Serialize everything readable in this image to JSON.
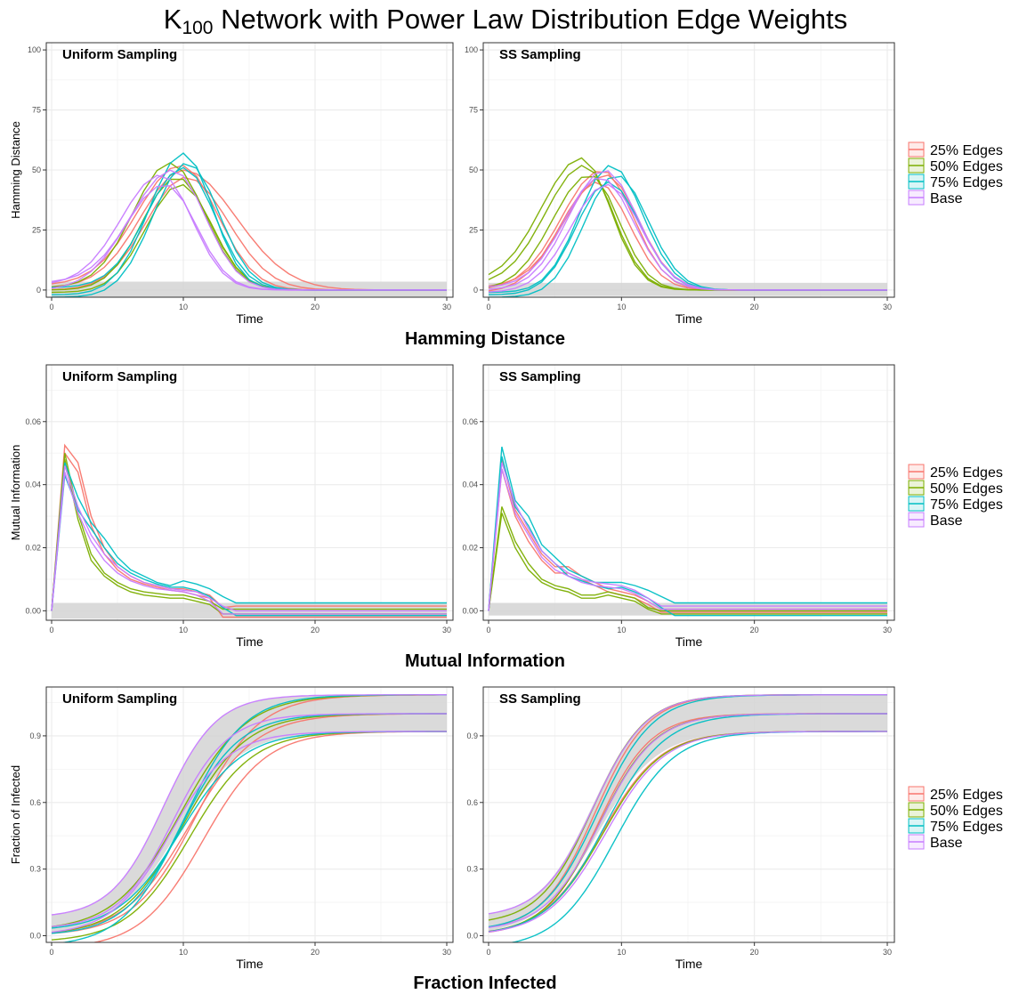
{
  "title": {
    "main": "K",
    "subscript": "100",
    "rest": " Network with Power Law Distribution Edge Weights"
  },
  "colors": {
    "25% Edges": "#F8766D",
    "50% Edges": "#7CAE00",
    "75% Edges": "#00BFC4",
    "Base": "#C77CFF",
    "band": "#D3D3D3"
  },
  "panel_titles": [
    "Uniform Sampling",
    "SS Sampling"
  ],
  "legend": [
    "25% Edges",
    "50% Edges",
    "75% Edges",
    "Base"
  ],
  "chart_data": [
    {
      "type": "line",
      "title": "Hamming Distance",
      "xlabel": "Time",
      "ylabel": "Hamming Distance",
      "xlim": [
        0,
        30
      ],
      "ylim": [
        -3,
        103
      ],
      "xticks": [
        0,
        10,
        20,
        30
      ],
      "yticks": [
        0,
        25,
        50,
        75,
        100
      ],
      "grid": true,
      "legend": "right",
      "panels": [
        {
          "title": "Uniform Sampling",
          "band": {
            "upper": 3.5,
            "lower": -3
          },
          "series": [
            {
              "group": "25% Edges",
              "peak": 50,
              "peak_x": 10,
              "w_left": 3.2,
              "w_right": 4.0,
              "start": 1
            },
            {
              "group": "25% Edges",
              "peak": 47,
              "peak_x": 10.2,
              "w_left": 3.0,
              "w_right": 3.2,
              "start": 0
            },
            {
              "group": "25% Edges",
              "peak": 52,
              "peak_x": 9.8,
              "w_left": 3.3,
              "w_right": 2.8,
              "start": 2
            },
            {
              "group": "50% Edges",
              "peak": 53,
              "peak_x": 9,
              "w_left": 2.8,
              "w_right": 2.6,
              "start": 1
            },
            {
              "group": "50% Edges",
              "peak": 47,
              "peak_x": 9.5,
              "w_left": 2.6,
              "w_right": 2.5,
              "start": 0
            },
            {
              "group": "50% Edges",
              "peak": 44,
              "peak_x": 9.8,
              "w_left": 2.6,
              "w_right": 2.4,
              "start": -1
            },
            {
              "group": "75% Edges",
              "peak": 57,
              "peak_x": 10,
              "w_left": 2.6,
              "w_right": 2.2,
              "start": -2
            },
            {
              "group": "75% Edges",
              "peak": 53,
              "peak_x": 10.3,
              "w_left": 2.6,
              "w_right": 2.4,
              "start": -3
            },
            {
              "group": "75% Edges",
              "peak": 51,
              "peak_x": 10,
              "w_left": 2.8,
              "w_right": 2.4,
              "start": 1
            },
            {
              "group": "Base",
              "peak": 48,
              "peak_x": 8.3,
              "w_left": 3.0,
              "w_right": 2.4,
              "start": 2
            },
            {
              "group": "Base",
              "peak": 44,
              "peak_x": 8.6,
              "w_left": 3.0,
              "w_right": 2.4,
              "start": 0
            },
            {
              "group": "Base",
              "peak": 50,
              "peak_x": 9.2,
              "w_left": 3.1,
              "w_right": 2.5,
              "start": 3
            }
          ]
        },
        {
          "title": "SS Sampling",
          "band": {
            "upper": 3,
            "lower": -2.5
          },
          "series": [
            {
              "group": "25% Edges",
              "peak": 50,
              "peak_x": 8.5,
              "w_left": 3.0,
              "w_right": 2.4,
              "start": 0
            },
            {
              "group": "25% Edges",
              "peak": 48,
              "peak_x": 8.8,
              "w_left": 3.0,
              "w_right": 2.5,
              "start": 1
            },
            {
              "group": "25% Edges",
              "peak": 45,
              "peak_x": 8.2,
              "w_left": 2.8,
              "w_right": 2.4,
              "start": -1
            },
            {
              "group": "50% Edges",
              "peak": 55,
              "peak_x": 7,
              "w_left": 3.0,
              "w_right": 2.2,
              "start": 3
            },
            {
              "group": "50% Edges",
              "peak": 52,
              "peak_x": 7.2,
              "w_left": 2.9,
              "w_right": 2.2,
              "start": 2
            },
            {
              "group": "50% Edges",
              "peak": 48,
              "peak_x": 7.6,
              "w_left": 2.8,
              "w_right": 2.2,
              "start": 0
            },
            {
              "group": "75% Edges",
              "peak": 52,
              "peak_x": 9.2,
              "w_left": 2.4,
              "w_right": 2.4,
              "start": -1
            },
            {
              "group": "75% Edges",
              "peak": 48,
              "peak_x": 9.6,
              "w_left": 2.4,
              "w_right": 2.4,
              "start": -3
            },
            {
              "group": "75% Edges",
              "peak": 45,
              "peak_x": 9,
              "w_left": 2.4,
              "w_right": 2.4,
              "start": -2
            },
            {
              "group": "Base",
              "peak": 50,
              "peak_x": 8.7,
              "w_left": 2.7,
              "w_right": 2.5,
              "start": 0
            },
            {
              "group": "Base",
              "peak": 47,
              "peak_x": 8.4,
              "w_left": 2.7,
              "w_right": 2.5,
              "start": 1
            },
            {
              "group": "Base",
              "peak": 44,
              "peak_x": 8.9,
              "w_left": 2.7,
              "w_right": 2.5,
              "start": -1
            }
          ]
        }
      ]
    },
    {
      "type": "line",
      "title": "Mutual Information",
      "xlabel": "Time",
      "ylabel": "Mutual Information",
      "xlim": [
        0,
        30
      ],
      "ylim": [
        -0.003,
        0.078
      ],
      "xticks": [
        0,
        10,
        20,
        30
      ],
      "yticks": [
        0.0,
        0.02,
        0.04,
        0.06
      ],
      "grid": true,
      "legend": "right",
      "panels": [
        {
          "title": "Uniform Sampling",
          "band": {
            "upper": 0.0025,
            "lower": -0.0025
          },
          "series": [
            {
              "group": "25% Edges",
              "y": [
                0,
                0.0525,
                0.047,
                0.03,
                0.02,
                0.014,
                0.011,
                0.009,
                0.008,
                0.007,
                0.007,
                0.006,
                0.005,
                0.001,
                0.0015,
                0.0015
              ]
            },
            {
              "group": "25% Edges",
              "y": [
                0,
                0.05,
                0.044,
                0.027,
                0.018,
                0.013,
                0.01,
                0.0085,
                0.0075,
                0.0065,
                0.006,
                0.005,
                0.004,
                -0.002,
                -0.002,
                -0.002
              ]
            },
            {
              "group": "50% Edges",
              "y": [
                0,
                0.05,
                0.031,
                0.018,
                0.012,
                0.009,
                0.007,
                0.006,
                0.0055,
                0.005,
                0.005,
                0.004,
                0.003,
                0.0005,
                0.0005,
                0.0005
              ]
            },
            {
              "group": "50% Edges",
              "y": [
                0,
                0.048,
                0.029,
                0.016,
                0.011,
                0.008,
                0.006,
                0.005,
                0.0045,
                0.004,
                0.004,
                0.003,
                0.002,
                -0.001,
                -0.001,
                -0.001
              ]
            },
            {
              "group": "75% Edges",
              "y": [
                0,
                0.047,
                0.036,
                0.028,
                0.023,
                0.017,
                0.013,
                0.011,
                0.009,
                0.008,
                0.0095,
                0.0085,
                0.007,
                0.0045,
                0.0025,
                0.0025
              ]
            },
            {
              "group": "75% Edges",
              "y": [
                0,
                0.043,
                0.032,
                0.026,
                0.02,
                0.015,
                0.012,
                0.01,
                0.0085,
                0.0075,
                0.0075,
                0.0065,
                0.0045,
                0.001,
                -0.0015,
                -0.0015
              ]
            },
            {
              "group": "Base",
              "y": [
                0,
                0.046,
                0.033,
                0.024,
                0.018,
                0.014,
                0.011,
                0.009,
                0.008,
                0.007,
                0.0065,
                0.006,
                0.004,
                0.0015,
                0,
                0
              ]
            },
            {
              "group": "Base",
              "y": [
                0,
                0.044,
                0.031,
                0.022,
                0.016,
                0.012,
                0.0095,
                0.008,
                0.007,
                0.0065,
                0.006,
                0.005,
                0.003,
                -0.001,
                -0.001,
                -0.001
              ]
            }
          ]
        },
        {
          "title": "SS Sampling",
          "band": {
            "upper": 0.0025,
            "lower": -0.0015
          },
          "series": [
            {
              "group": "25% Edges",
              "y": [
                0,
                0.048,
                0.032,
                0.025,
                0.018,
                0.014,
                0.014,
                0.011,
                0.009,
                0.007,
                0.006,
                0.005,
                0.003,
                0.0005,
                0.0005,
                0.0005
              ]
            },
            {
              "group": "25% Edges",
              "y": [
                0,
                0.045,
                0.03,
                0.022,
                0.016,
                0.012,
                0.012,
                0.01,
                0.008,
                0.006,
                0.005,
                0.004,
                0.002,
                -0.0005,
                -0.0005,
                -0.0005
              ]
            },
            {
              "group": "50% Edges",
              "y": [
                0,
                0.033,
                0.022,
                0.015,
                0.01,
                0.008,
                0.007,
                0.005,
                0.005,
                0.006,
                0.005,
                0.004,
                0.001,
                0,
                0,
                0
              ]
            },
            {
              "group": "50% Edges",
              "y": [
                0,
                0.031,
                0.02,
                0.013,
                0.009,
                0.007,
                0.006,
                0.004,
                0.004,
                0.005,
                0.004,
                0.003,
                0.0005,
                -0.001,
                -0.001,
                -0.001
              ]
            },
            {
              "group": "75% Edges",
              "y": [
                0,
                0.052,
                0.035,
                0.03,
                0.021,
                0.017,
                0.013,
                0.011,
                0.009,
                0.009,
                0.009,
                0.008,
                0.0065,
                0.0045,
                0.0025,
                0.0025
              ]
            },
            {
              "group": "75% Edges",
              "y": [
                0,
                0.049,
                0.033,
                0.027,
                0.019,
                0.015,
                0.011,
                0.0095,
                0.008,
                0.007,
                0.0075,
                0.006,
                0.004,
                0.001,
                -0.0015,
                -0.0015
              ]
            },
            {
              "group": "Base",
              "y": [
                0,
                0.047,
                0.034,
                0.026,
                0.019,
                0.015,
                0.012,
                0.01,
                0.009,
                0.0085,
                0.008,
                0.0065,
                0.004,
                0.0015,
                0.0015,
                0.0015
              ]
            },
            {
              "group": "Base",
              "y": [
                0,
                0.045,
                0.031,
                0.024,
                0.017,
                0.013,
                0.011,
                0.009,
                0.008,
                0.0075,
                0.007,
                0.0055,
                0.003,
                0.0005,
                0.0005,
                0.0005
              ]
            }
          ]
        }
      ]
    },
    {
      "type": "area",
      "title": "Fraction Infected",
      "xlabel": "Time",
      "ylabel": "Fraction of Infected",
      "xlim": [
        0,
        30
      ],
      "ylim": [
        -0.03,
        1.12
      ],
      "xticks": [
        0,
        10,
        20,
        30
      ],
      "yticks": [
        0.0,
        0.3,
        0.6,
        0.9
      ],
      "grid": true,
      "legend": "right",
      "panels": [
        {
          "title": "Uniform Sampling",
          "band": {
            "upper": {
              "y0": 0.08,
              "mid": 8.5,
              "k": 0.5,
              "yinf": 1.085
            },
            "lower": {
              "y0": 0,
              "mid": 9.5,
              "k": 0.42,
              "yinf": 0.92
            }
          },
          "series": [
            {
              "group": "25% Edges",
              "y0": 0,
              "mid": 10.5,
              "k": 0.4,
              "yinf": 1.0
            },
            {
              "group": "25% Edges",
              "y0": 0,
              "mid": 11,
              "k": 0.42,
              "yinf": 1.085
            },
            {
              "group": "25% Edges",
              "y0": -0.06,
              "mid": 11.5,
              "k": 0.42,
              "yinf": 0.92
            },
            {
              "group": "50% Edges",
              "y0": 0,
              "mid": 10,
              "k": 0.42,
              "yinf": 1.0
            },
            {
              "group": "50% Edges",
              "y0": 0.02,
              "mid": 9.8,
              "k": 0.4,
              "yinf": 1.085
            },
            {
              "group": "50% Edges",
              "y0": -0.03,
              "mid": 10.5,
              "k": 0.42,
              "yinf": 0.92
            },
            {
              "group": "75% Edges",
              "y0": -0.05,
              "mid": 9.7,
              "k": 0.45,
              "yinf": 1.0
            },
            {
              "group": "75% Edges",
              "y0": 0,
              "mid": 10.2,
              "k": 0.45,
              "yinf": 1.085
            },
            {
              "group": "75% Edges",
              "y0": 0.02,
              "mid": 9.8,
              "k": 0.42,
              "yinf": 0.92
            },
            {
              "group": "Base",
              "y0": 0.08,
              "mid": 8.5,
              "k": 0.5,
              "yinf": 1.085
            },
            {
              "group": "Base",
              "y0": 0.03,
              "mid": 9.2,
              "k": 0.48,
              "yinf": 1.0
            },
            {
              "group": "Base",
              "y0": 0,
              "mid": 9,
              "k": 0.45,
              "yinf": 0.92
            }
          ]
        },
        {
          "title": "SS Sampling",
          "band": {
            "upper": {
              "y0": 0.08,
              "mid": 7.8,
              "k": 0.5,
              "yinf": 1.085
            },
            "lower": {
              "y0": 0,
              "mid": 8.2,
              "k": 0.45,
              "yinf": 0.92
            }
          },
          "series": [
            {
              "group": "25% Edges",
              "y0": 0,
              "mid": 8.2,
              "k": 0.5,
              "yinf": 1.0
            },
            {
              "group": "25% Edges",
              "y0": 0.02,
              "mid": 8,
              "k": 0.5,
              "yinf": 1.085
            },
            {
              "group": "25% Edges",
              "y0": 0,
              "mid": 8.5,
              "k": 0.45,
              "yinf": 0.92
            },
            {
              "group": "50% Edges",
              "y0": 0.05,
              "mid": 7.8,
              "k": 0.5,
              "yinf": 1.085
            },
            {
              "group": "50% Edges",
              "y0": 0,
              "mid": 8.3,
              "k": 0.48,
              "yinf": 1.0
            },
            {
              "group": "50% Edges",
              "y0": 0,
              "mid": 8.6,
              "k": 0.45,
              "yinf": 0.92
            },
            {
              "group": "75% Edges",
              "y0": -0.06,
              "mid": 9.5,
              "k": 0.45,
              "yinf": 0.92
            },
            {
              "group": "75% Edges",
              "y0": 0,
              "mid": 8.8,
              "k": 0.45,
              "yinf": 1.0
            },
            {
              "group": "75% Edges",
              "y0": 0.02,
              "mid": 8.2,
              "k": 0.48,
              "yinf": 1.085
            },
            {
              "group": "Base",
              "y0": 0.08,
              "mid": 7.9,
              "k": 0.5,
              "yinf": 1.085
            },
            {
              "group": "Base",
              "y0": 0.02,
              "mid": 8.4,
              "k": 0.48,
              "yinf": 1.0
            },
            {
              "group": "Base",
              "y0": 0,
              "mid": 8.8,
              "k": 0.45,
              "yinf": 0.92
            }
          ]
        }
      ]
    }
  ]
}
